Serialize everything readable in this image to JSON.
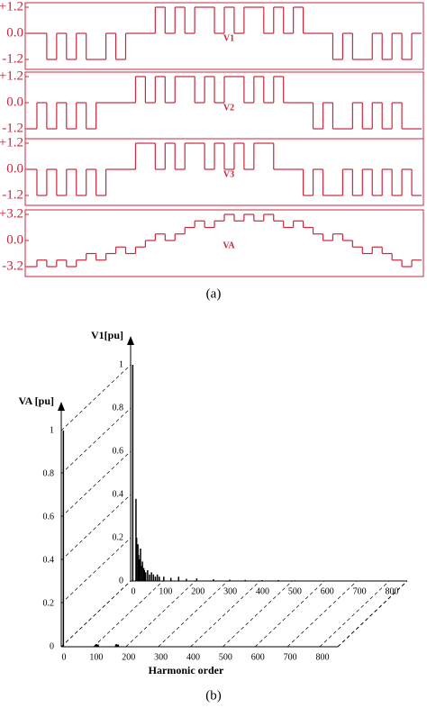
{
  "figure_labels": [
    "(a)",
    "(b)"
  ],
  "chart_data": [
    {
      "type": "step",
      "label": "V1",
      "color": "#c8283c",
      "ylim": [
        -1.2,
        1.2
      ],
      "yticks": [
        {
          "value": 1.2,
          "label": "+1.2"
        },
        {
          "value": 0,
          "label": "0.0"
        },
        -1.2
      ],
      "values": [
        0,
        0,
        -1.2,
        0,
        -1.2,
        0,
        -1.2,
        -1.2,
        0,
        -1.2,
        0,
        0,
        0,
        1.2,
        0,
        1.2,
        0,
        1.2,
        1.2,
        0,
        1.2,
        0,
        1.2,
        1.2,
        0,
        1.2,
        0,
        1.2,
        0,
        0,
        0,
        -1.2,
        0,
        -1.2,
        -1.2,
        0,
        -1.2,
        0,
        -1.2,
        0
      ]
    },
    {
      "type": "step",
      "label": "V2",
      "color": "#c8283c",
      "ylim": [
        -1.2,
        1.2
      ],
      "yticks": [
        {
          "value": 1.2,
          "label": "+1.2"
        },
        {
          "value": 0,
          "label": "0.0"
        },
        -1.2
      ],
      "values": [
        -1.2,
        0,
        -1.2,
        0,
        -1.2,
        0,
        -1.2,
        0,
        0,
        0,
        0,
        1.2,
        0,
        1.2,
        0,
        1.2,
        1.2,
        0,
        1.2,
        0,
        1.2,
        1.2,
        0,
        1.2,
        0,
        1.2,
        0,
        0,
        0,
        -1.2,
        0,
        -1.2,
        -1.2,
        0,
        -1.2,
        0,
        -1.2,
        0,
        -1.2,
        -1.2
      ]
    },
    {
      "type": "step",
      "label": "V3",
      "color": "#c8283c",
      "ylim": [
        -1.2,
        1.2
      ],
      "yticks": [
        {
          "value": 1.2,
          "label": "+1.2"
        },
        {
          "value": 0,
          "label": "0.0"
        },
        -1.2
      ],
      "values": [
        0,
        -1.2,
        0,
        -1.2,
        0,
        -1.2,
        0,
        -1.2,
        0,
        0,
        0,
        1.2,
        1.2,
        0,
        1.2,
        0,
        1.2,
        1.2,
        0,
        1.2,
        0,
        1.2,
        0,
        1.2,
        1.2,
        0,
        0,
        0,
        -1.2,
        0,
        -1.2,
        -1.2,
        0,
        -1.2,
        0,
        -1.2,
        0,
        -1.2,
        0,
        -1.2
      ]
    },
    {
      "type": "step",
      "label": "VA",
      "color": "#c8283c",
      "ylim": [
        -3.2,
        3.2
      ],
      "yticks": [
        {
          "value": 3.2,
          "label": "+3.2"
        },
        {
          "value": 0,
          "label": "0.0"
        },
        -3.2
      ],
      "values": [
        -3.2,
        -2.4,
        -3.2,
        -2.4,
        -3.2,
        -2.4,
        -1.6,
        -2.4,
        -1.6,
        -0.8,
        -1.6,
        -0.8,
        0,
        0.8,
        0,
        0.8,
        1.6,
        2.4,
        1.6,
        2.4,
        3.2,
        2.4,
        3.2,
        2.4,
        3.2,
        2.4,
        1.6,
        2.4,
        1.6,
        0.8,
        0,
        0.8,
        0,
        -0.8,
        -1.6,
        -0.8,
        -1.6,
        -2.4,
        -3.2,
        -2.4
      ]
    },
    {
      "type": "bar3d",
      "xlabel": "Harmonic order",
      "xlim": [
        0,
        800
      ],
      "xticks": [
        0,
        100,
        200,
        300,
        400,
        500,
        600,
        700,
        800
      ],
      "ylim": [
        0,
        1
      ],
      "yticks": [
        0,
        0.2,
        0.4,
        0.6,
        0.8,
        1
      ],
      "series": [
        {
          "name": "V1[pu]",
          "color": "#000000",
          "x": [
            1,
            11,
            13,
            17,
            19,
            23,
            25,
            29,
            31,
            35,
            37,
            41,
            47,
            53,
            59,
            65,
            71,
            77,
            83,
            97,
            119,
            143,
            167,
            199,
            251,
            301,
            349,
            401,
            451,
            503
          ],
          "values": [
            1,
            0.38,
            0.2,
            0.17,
            0.12,
            0.1,
            0.15,
            0.07,
            0.09,
            0.06,
            0.05,
            0.04,
            0.05,
            0.03,
            0.04,
            0.03,
            0.02,
            0.03,
            0.02,
            0.02,
            0.015,
            0.02,
            0.01,
            0.012,
            0.008,
            0.006,
            0.005,
            0.004,
            0.004,
            0.003
          ]
        },
        {
          "name": "VA [pu]",
          "color": "#000000",
          "x": [
            1,
            101,
            103,
            105,
            107,
            109,
            163,
            165,
            167,
            169,
            171
          ],
          "values": [
            1,
            0.01,
            0.012,
            0.01,
            0.008,
            0.01,
            0.01,
            0.012,
            0.01,
            0.008,
            0.01
          ]
        }
      ]
    }
  ]
}
